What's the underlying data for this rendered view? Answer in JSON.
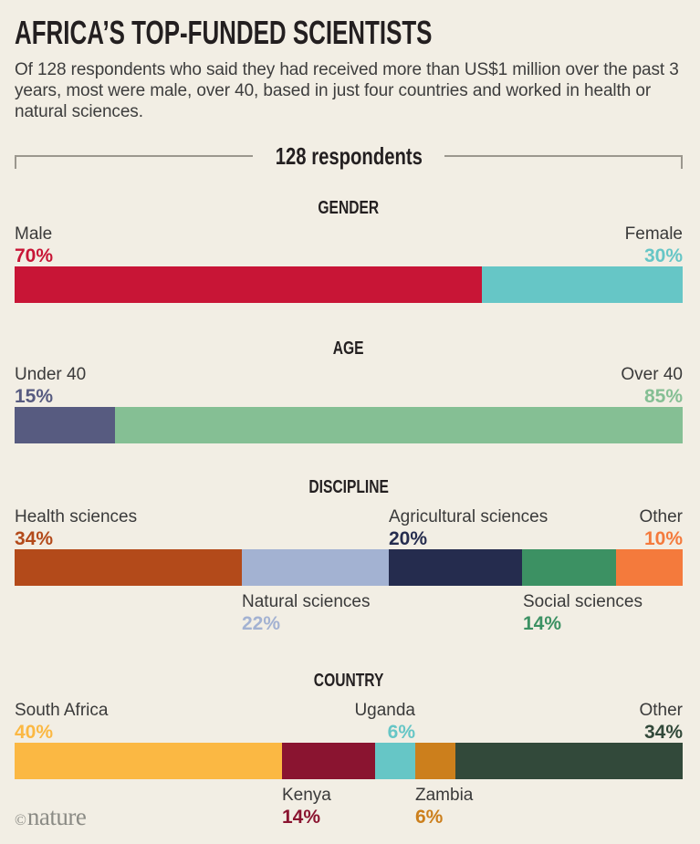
{
  "page": {
    "title": "AFRICA’S TOP-FUNDED SCIENTISTS",
    "subtitle": "Of 128 respondents who said they had received more than US$1 million over the past 3 years, most were male, over 40, based in just four countries and worked in health or natural sciences.",
    "bracket_label": "128 respondents",
    "footer": {
      "copyright": "©",
      "brand": "nature"
    }
  },
  "colors": {
    "background": "#f2eee4",
    "title_text": "#231f20",
    "body_text": "#3d3d3d",
    "bracket_line": "#9b978e",
    "logo": "#8b8b85"
  },
  "chart_data": [
    {
      "type": "stacked-bar",
      "title": "GENDER",
      "unit": "% of 128 respondents",
      "segments": [
        {
          "label": "Male",
          "value": 70,
          "display": "70%",
          "color": "#c81536",
          "label_side": "above-left"
        },
        {
          "label": "Female",
          "value": 30,
          "display": "30%",
          "color": "#66c6c6",
          "label_side": "above-right"
        }
      ]
    },
    {
      "type": "stacked-bar",
      "title": "AGE",
      "unit": "% of 128 respondents",
      "segments": [
        {
          "label": "Under 40",
          "value": 15,
          "display": "15%",
          "color": "#575b80",
          "label_side": "above-left"
        },
        {
          "label": "Over 40",
          "value": 85,
          "display": "85%",
          "color": "#85bf94",
          "label_side": "above-right"
        }
      ]
    },
    {
      "type": "stacked-bar",
      "title": "DISCIPLINE",
      "unit": "% of 128 respondents",
      "segments": [
        {
          "label": "Health sciences",
          "value": 34,
          "display": "34%",
          "color": "#b34a1a",
          "label_side": "above"
        },
        {
          "label": "Natural sciences",
          "value": 22,
          "display": "22%",
          "color": "#a3b2d2",
          "label_side": "below"
        },
        {
          "label": "Agricultural sciences",
          "value": 20,
          "display": "20%",
          "color": "#252c4e",
          "label_side": "above"
        },
        {
          "label": "Social sciences",
          "value": 14,
          "display": "14%",
          "color": "#3c9163",
          "label_side": "below"
        },
        {
          "label": "Other",
          "value": 10,
          "display": "10%",
          "color": "#f47a3c",
          "label_side": "above"
        }
      ]
    },
    {
      "type": "stacked-bar",
      "title": "COUNTRY",
      "unit": "% of 128 respondents",
      "segments": [
        {
          "label": "South Africa",
          "value": 40,
          "display": "40%",
          "color": "#fbb843",
          "label_side": "above"
        },
        {
          "label": "Kenya",
          "value": 14,
          "display": "14%",
          "color": "#8a1430",
          "label_side": "below"
        },
        {
          "label": "Uganda",
          "value": 6,
          "display": "6%",
          "color": "#66c6c6",
          "label_side": "above"
        },
        {
          "label": "Zambia",
          "value": 6,
          "display": "6%",
          "color": "#cc7f1c",
          "label_side": "below"
        },
        {
          "label": "Other",
          "value": 34,
          "display": "34%",
          "color": "#32493a",
          "label_side": "above"
        }
      ]
    }
  ]
}
